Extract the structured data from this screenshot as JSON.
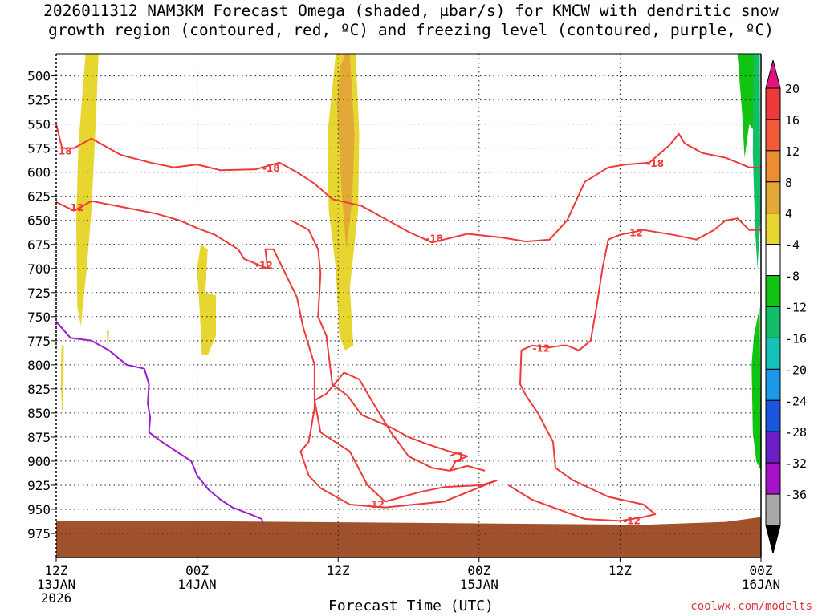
{
  "title_lines": [
    "2026011312 NAM3KM Forecast Omega (shaded, μbar/s) for KMCW with dendritic snow",
    "growth region (contoured, red, ºC) and freezing level (contoured, purple, ºC)"
  ],
  "credit": "coolwx.com/modelts",
  "chart_data": {
    "type": "contour",
    "xlabel": "Forecast Time (UTC)",
    "ylabel": "",
    "x_ticks": [
      {
        "hour": 0,
        "lines": [
          "12Z",
          "13JAN",
          "2026"
        ]
      },
      {
        "hour": 12,
        "lines": [
          "00Z",
          "14JAN"
        ]
      },
      {
        "hour": 24,
        "lines": [
          "12Z"
        ]
      },
      {
        "hour": 36,
        "lines": [
          "00Z",
          "15JAN"
        ]
      },
      {
        "hour": 48,
        "lines": [
          "12Z"
        ]
      },
      {
        "hour": 60,
        "lines": [
          "00Z",
          "16JAN"
        ]
      }
    ],
    "xlim": [
      0,
      60
    ],
    "y_ticks": [
      500,
      525,
      550,
      575,
      600,
      625,
      650,
      675,
      700,
      725,
      750,
      775,
      800,
      825,
      850,
      875,
      900,
      925,
      950,
      975
    ],
    "ylim": [
      1000,
      477
    ],
    "grid": true,
    "colorbar": {
      "levels": [
        20,
        16,
        12,
        8,
        4,
        -4,
        -8,
        -12,
        -16,
        -20,
        -24,
        -28,
        -32,
        -36
      ],
      "colors": [
        "#ee3a3a",
        "#f25a3a",
        "#ec8c33",
        "#e3a936",
        "#e7d62f",
        "#ffffff",
        "#11c411",
        "#12bf68",
        "#15c2b8",
        "#1b98e8",
        "#1c55de",
        "#6b1ec6",
        "#a512c9",
        "#a8a8a8"
      ],
      "top_color": "#e0147a",
      "bottom_color": "#000000"
    },
    "omega_regions": [
      {
        "level": 4,
        "points": [
          [
            2.5,
            477
          ],
          [
            3.6,
            477
          ],
          [
            3.4,
            540
          ],
          [
            3.0,
            640
          ],
          [
            2.6,
            700
          ],
          [
            2.1,
            760
          ],
          [
            1.8,
            740
          ],
          [
            1.7,
            650
          ],
          [
            1.9,
            570
          ]
        ]
      },
      {
        "level": 4,
        "points": [
          [
            0.45,
            780
          ],
          [
            0.65,
            780
          ],
          [
            0.6,
            840
          ],
          [
            0.5,
            850
          ],
          [
            0.4,
            820
          ]
        ]
      },
      {
        "level": 4,
        "points": [
          [
            4.3,
            765
          ],
          [
            4.5,
            765
          ],
          [
            4.4,
            790
          ]
        ]
      },
      {
        "level": 4,
        "points": [
          [
            12.3,
            675
          ],
          [
            12.9,
            680
          ],
          [
            12.7,
            725
          ],
          [
            13.6,
            728
          ],
          [
            13.6,
            770
          ],
          [
            12.9,
            790
          ],
          [
            12.4,
            790
          ],
          [
            12.2,
            740
          ],
          [
            12.0,
            700
          ]
        ]
      },
      {
        "level": 4,
        "points": [
          [
            23.8,
            477
          ],
          [
            25.5,
            477
          ],
          [
            25.8,
            560
          ],
          [
            25.7,
            640
          ],
          [
            25.0,
            720
          ],
          [
            25.3,
            780
          ],
          [
            24.6,
            785
          ],
          [
            24.1,
            770
          ],
          [
            23.8,
            700
          ],
          [
            23.2,
            640
          ],
          [
            23.1,
            560
          ]
        ]
      },
      {
        "level": 8,
        "points": [
          [
            24.6,
            477
          ],
          [
            25.0,
            477
          ],
          [
            25.4,
            560
          ],
          [
            25.2,
            630
          ],
          [
            24.7,
            680
          ],
          [
            24.3,
            620
          ],
          [
            23.9,
            530
          ],
          [
            24.2,
            490
          ]
        ]
      },
      {
        "level": -8,
        "points": [
          [
            58.0,
            477
          ],
          [
            59.7,
            477
          ],
          [
            59.6,
            560
          ],
          [
            59.0,
            550
          ],
          [
            58.6,
            585
          ],
          [
            58.4,
            540
          ]
        ]
      },
      {
        "level": -8,
        "points": [
          [
            59.4,
            770
          ],
          [
            59.9,
            740
          ],
          [
            60.0,
            910
          ],
          [
            59.6,
            900
          ],
          [
            59.3,
            870
          ],
          [
            59.2,
            800
          ]
        ]
      },
      {
        "level": -12,
        "points": [
          [
            59.4,
            477
          ],
          [
            59.9,
            477
          ],
          [
            59.95,
            650
          ],
          [
            59.7,
            700
          ],
          [
            59.5,
            660
          ],
          [
            59.3,
            580
          ]
        ]
      }
    ],
    "red_contours": [
      {
        "label": "-18",
        "points": [
          [
            0,
            550
          ],
          [
            0.5,
            575
          ],
          [
            1.5,
            575
          ],
          [
            3.0,
            565
          ],
          [
            5.5,
            582
          ],
          [
            8,
            590
          ],
          [
            10,
            595
          ],
          [
            12,
            592
          ],
          [
            14,
            598
          ],
          [
            17,
            597
          ],
          [
            19,
            590
          ],
          [
            20.5,
            600
          ],
          [
            22,
            612
          ],
          [
            23.5,
            628
          ],
          [
            26.0,
            635
          ],
          [
            27.5,
            645
          ],
          [
            30.0,
            662
          ],
          [
            32.0,
            673
          ],
          [
            35.0,
            664
          ],
          [
            38.0,
            668
          ],
          [
            40.0,
            672
          ],
          [
            42.0,
            670
          ],
          [
            43.5,
            650
          ],
          [
            45.0,
            610
          ],
          [
            47.0,
            595
          ],
          [
            48.5,
            592
          ],
          [
            50.5,
            590
          ],
          [
            52.2,
            572
          ],
          [
            53.0,
            560
          ],
          [
            53.5,
            570
          ],
          [
            55.0,
            580
          ],
          [
            57.0,
            585
          ],
          [
            59.0,
            595
          ],
          [
            60.0,
            595
          ]
        ]
      },
      {
        "label": "-12",
        "points": [
          [
            0,
            631
          ],
          [
            1.5,
            640
          ],
          [
            3.0,
            630
          ],
          [
            6,
            637
          ],
          [
            8.5,
            643
          ],
          [
            10.5,
            650
          ],
          [
            12.0,
            658
          ],
          [
            13.5,
            665
          ],
          [
            15.5,
            680
          ],
          [
            16.0,
            690
          ],
          [
            18.0,
            700
          ],
          [
            17.8,
            680
          ],
          [
            18.5,
            680
          ],
          [
            19.5,
            705
          ],
          [
            20.5,
            730
          ],
          [
            21.0,
            760
          ],
          [
            22.0,
            800
          ],
          [
            22.0,
            845
          ],
          [
            21.5,
            880
          ],
          [
            20.8,
            890
          ],
          [
            21.5,
            915
          ],
          [
            22.5,
            928
          ],
          [
            25.0,
            945
          ],
          [
            28.0,
            948
          ],
          [
            33.0,
            942
          ],
          [
            37.5,
            920
          ],
          [
            36.2,
            925
          ],
          [
            33.0,
            927
          ],
          [
            31.0,
            932
          ],
          [
            28.0,
            942
          ],
          [
            26.5,
            925
          ],
          [
            25.0,
            890
          ],
          [
            22.5,
            870
          ],
          [
            22.0,
            837
          ],
          [
            23.0,
            830
          ],
          [
            24.5,
            808
          ],
          [
            25.8,
            815
          ],
          [
            27.0,
            840
          ],
          [
            28.5,
            870
          ],
          [
            30.0,
            895
          ],
          [
            32.0,
            907
          ],
          [
            33.5,
            910
          ],
          [
            33.8,
            905
          ],
          [
            34.0,
            900
          ],
          [
            35.0,
            895
          ],
          [
            33.5,
            890
          ],
          [
            31.5,
            882
          ],
          [
            30.0,
            875
          ],
          [
            28.5,
            865
          ],
          [
            26.0,
            852
          ],
          [
            24.8,
            832
          ],
          [
            23.5,
            820
          ],
          [
            23.0,
            770
          ],
          [
            22.3,
            750
          ],
          [
            22.5,
            705
          ],
          [
            22.3,
            680
          ],
          [
            21.5,
            660
          ],
          [
            20.0,
            650
          ]
        ]
      },
      {
        "label": "-12",
        "points": [
          [
            38.5,
            925
          ],
          [
            40.5,
            940
          ],
          [
            45.0,
            960
          ],
          [
            48.0,
            962
          ],
          [
            50.0,
            958
          ],
          [
            51.0,
            955
          ],
          [
            50.0,
            945
          ],
          [
            47.0,
            937
          ],
          [
            44.0,
            920
          ],
          [
            42.5,
            907
          ],
          [
            42.3,
            880
          ],
          [
            41.0,
            850
          ],
          [
            40.0,
            832
          ],
          [
            39.5,
            820
          ],
          [
            39.6,
            785
          ],
          [
            40.5,
            780
          ],
          [
            42.0,
            782
          ],
          [
            43.0,
            780
          ],
          [
            43.5,
            780
          ],
          [
            44.5,
            785
          ],
          [
            45.5,
            775
          ],
          [
            46.0,
            740
          ],
          [
            46.5,
            700
          ],
          [
            47.0,
            670
          ],
          [
            48.0,
            665
          ],
          [
            50.0,
            660
          ],
          [
            52.5,
            665
          ],
          [
            54.5,
            670
          ],
          [
            56.0,
            660
          ],
          [
            57.0,
            650
          ],
          [
            58.0,
            648
          ],
          [
            59.0,
            660
          ],
          [
            60.0,
            660
          ]
        ]
      },
      {
        "label": "",
        "points": [
          [
            33.5,
            895
          ],
          [
            34.0,
            892
          ],
          [
            34.5,
            892
          ],
          [
            34.4,
            900
          ],
          [
            33.8,
            900
          ]
        ]
      },
      {
        "label": "",
        "points": [
          [
            36.5,
            910
          ],
          [
            35.0,
            905
          ],
          [
            33.5,
            910
          ]
        ]
      }
    ],
    "red_labels": [
      {
        "text": "-18",
        "x": 0.6,
        "y": 578
      },
      {
        "text": "-18",
        "x": 18.3,
        "y": 596
      },
      {
        "text": "-18",
        "x": 32.2,
        "y": 669
      },
      {
        "text": "-18",
        "x": 51.0,
        "y": 591
      },
      {
        "text": "-12",
        "x": 1.6,
        "y": 637
      },
      {
        "text": "-12",
        "x": 17.7,
        "y": 697
      },
      {
        "text": "-12",
        "x": 27.2,
        "y": 945
      },
      {
        "text": "-12",
        "x": 41.3,
        "y": 783
      },
      {
        "text": "-12",
        "x": 49.2,
        "y": 663
      },
      {
        "text": "-12",
        "x": 49.0,
        "y": 962
      }
    ],
    "purple_contour": [
      [
        0,
        755
      ],
      [
        1.2,
        772
      ],
      [
        3.0,
        775
      ],
      [
        4.5,
        785
      ],
      [
        6.0,
        800
      ],
      [
        7.5,
        804
      ],
      [
        7.9,
        820
      ],
      [
        7.8,
        840
      ],
      [
        8.0,
        855
      ],
      [
        7.9,
        870
      ],
      [
        9.0,
        880
      ],
      [
        10.0,
        888
      ],
      [
        11.5,
        900
      ],
      [
        12.0,
        915
      ],
      [
        13.0,
        930
      ],
      [
        14.0,
        940
      ],
      [
        15.0,
        948
      ],
      [
        16.5,
        955
      ],
      [
        17.5,
        960
      ],
      [
        17.6,
        965
      ]
    ],
    "vertical_line_hours": [
      12,
      24,
      36,
      48
    ]
  }
}
